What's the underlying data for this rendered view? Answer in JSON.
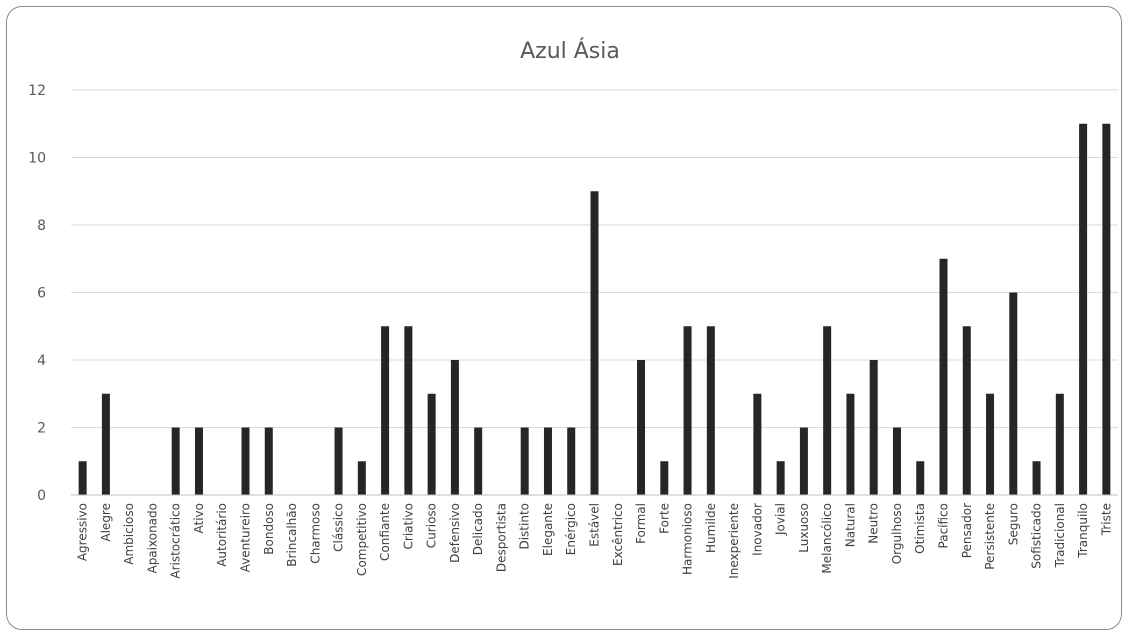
{
  "chart_data": {
    "type": "bar",
    "title": "Azul Ásia",
    "xlabel": "",
    "ylabel": "",
    "ylim": [
      0,
      12
    ],
    "yticks": [
      "0",
      "2",
      "4",
      "6",
      "8",
      "10",
      "12"
    ],
    "grid": true,
    "legend": "none",
    "bar_color": "#262626",
    "categories": [
      "Agressivo",
      "Alegre",
      "Ambicioso",
      "Apaixonado",
      "Aristocrático",
      "Ativo",
      "Autoritário",
      "Aventureiro",
      "Bondoso",
      "Brincalhão",
      "Charmoso",
      "Clássico",
      "Competitivo",
      "Confiante",
      "Criativo",
      "Curioso",
      "Defensivo",
      "Delicado",
      "Desportista",
      "Distinto",
      "Elegante",
      "Enérgico",
      "Estável",
      "Excêntrico",
      "Formal",
      "Forte",
      "Harmonioso",
      "Humilde",
      "Inexperiente",
      "Inovador",
      "Jovial",
      "Luxuoso",
      "Melancólico",
      "Natural",
      "Neutro",
      "Orgulhoso",
      "Otimista",
      "Pacífico",
      "Pensador",
      "Persistente",
      "Seguro",
      "Sofisticado",
      "Tradicional",
      "Tranquilo",
      "Triste"
    ],
    "values": [
      1,
      3,
      0,
      0,
      2,
      2,
      0,
      2,
      2,
      0,
      0,
      2,
      1,
      5,
      5,
      3,
      4,
      2,
      0,
      2,
      2,
      2,
      9,
      0,
      4,
      1,
      5,
      5,
      0,
      3,
      1,
      2,
      5,
      3,
      4,
      2,
      1,
      7,
      5,
      3,
      6,
      1,
      3,
      11,
      11
    ]
  }
}
